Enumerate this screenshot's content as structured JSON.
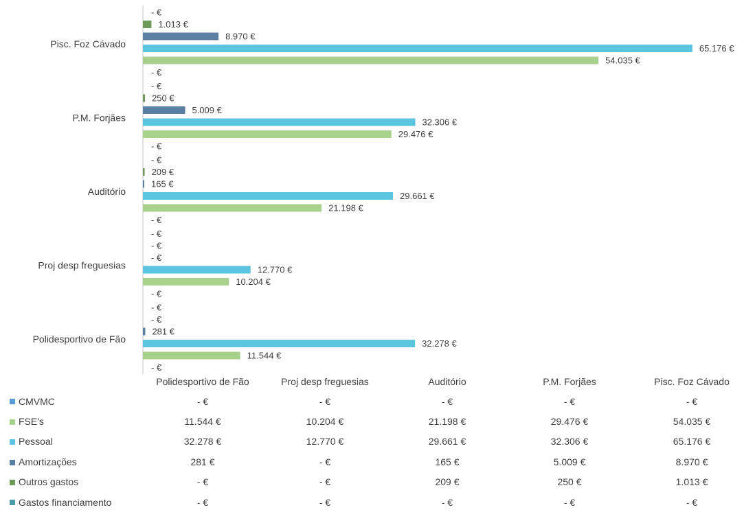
{
  "chart_data": {
    "type": "bar",
    "orientation": "horizontal",
    "categories": [
      "Polidesportivo de Fão",
      "Proj desp freguesias",
      "Auditório",
      "P.M. Forjães",
      "Pisc. Foz Cávado"
    ],
    "series": [
      {
        "name": "CMVMC",
        "color": "#5b9bd5",
        "values": [
          0,
          0,
          0,
          0,
          0
        ],
        "labels": [
          "-  €",
          "-  €",
          "-  €",
          "-  €",
          "-  €"
        ]
      },
      {
        "name": "FSE's",
        "color": "#a9d18e",
        "values": [
          11544,
          10204,
          21198,
          29476,
          54035
        ],
        "labels": [
          "11.544 €",
          "10.204 €",
          "21.198 €",
          "29.476 €",
          "54.035 €"
        ]
      },
      {
        "name": "Pessoal",
        "color": "#5bc4de",
        "values": [
          32278,
          12770,
          29661,
          32306,
          65176
        ],
        "labels": [
          "32.278 €",
          "12.770 €",
          "29.661 €",
          "32.306 €",
          "65.176 €"
        ]
      },
      {
        "name": "Amortizações",
        "color": "#5a7fa3",
        "values": [
          281,
          0,
          165,
          5009,
          8970
        ],
        "labels": [
          "281 €",
          "-  €",
          "165 €",
          "5.009 €",
          "8.970 €"
        ]
      },
      {
        "name": "Outros gastos",
        "color": "#6e9b5a",
        "values": [
          0,
          0,
          209,
          250,
          1013
        ],
        "labels": [
          "-  €",
          "-  €",
          "209 €",
          "250 €",
          "1.013 €"
        ]
      },
      {
        "name": "Gastos  financiamento",
        "color": "#4a9aa8",
        "values": [
          0,
          0,
          0,
          0,
          0
        ],
        "labels": [
          "-  €",
          "-  €",
          "-  €",
          "-  €",
          "-  €"
        ]
      }
    ],
    "xlim": [
      0,
      66000
    ],
    "grid": false,
    "legend": "data-table"
  }
}
